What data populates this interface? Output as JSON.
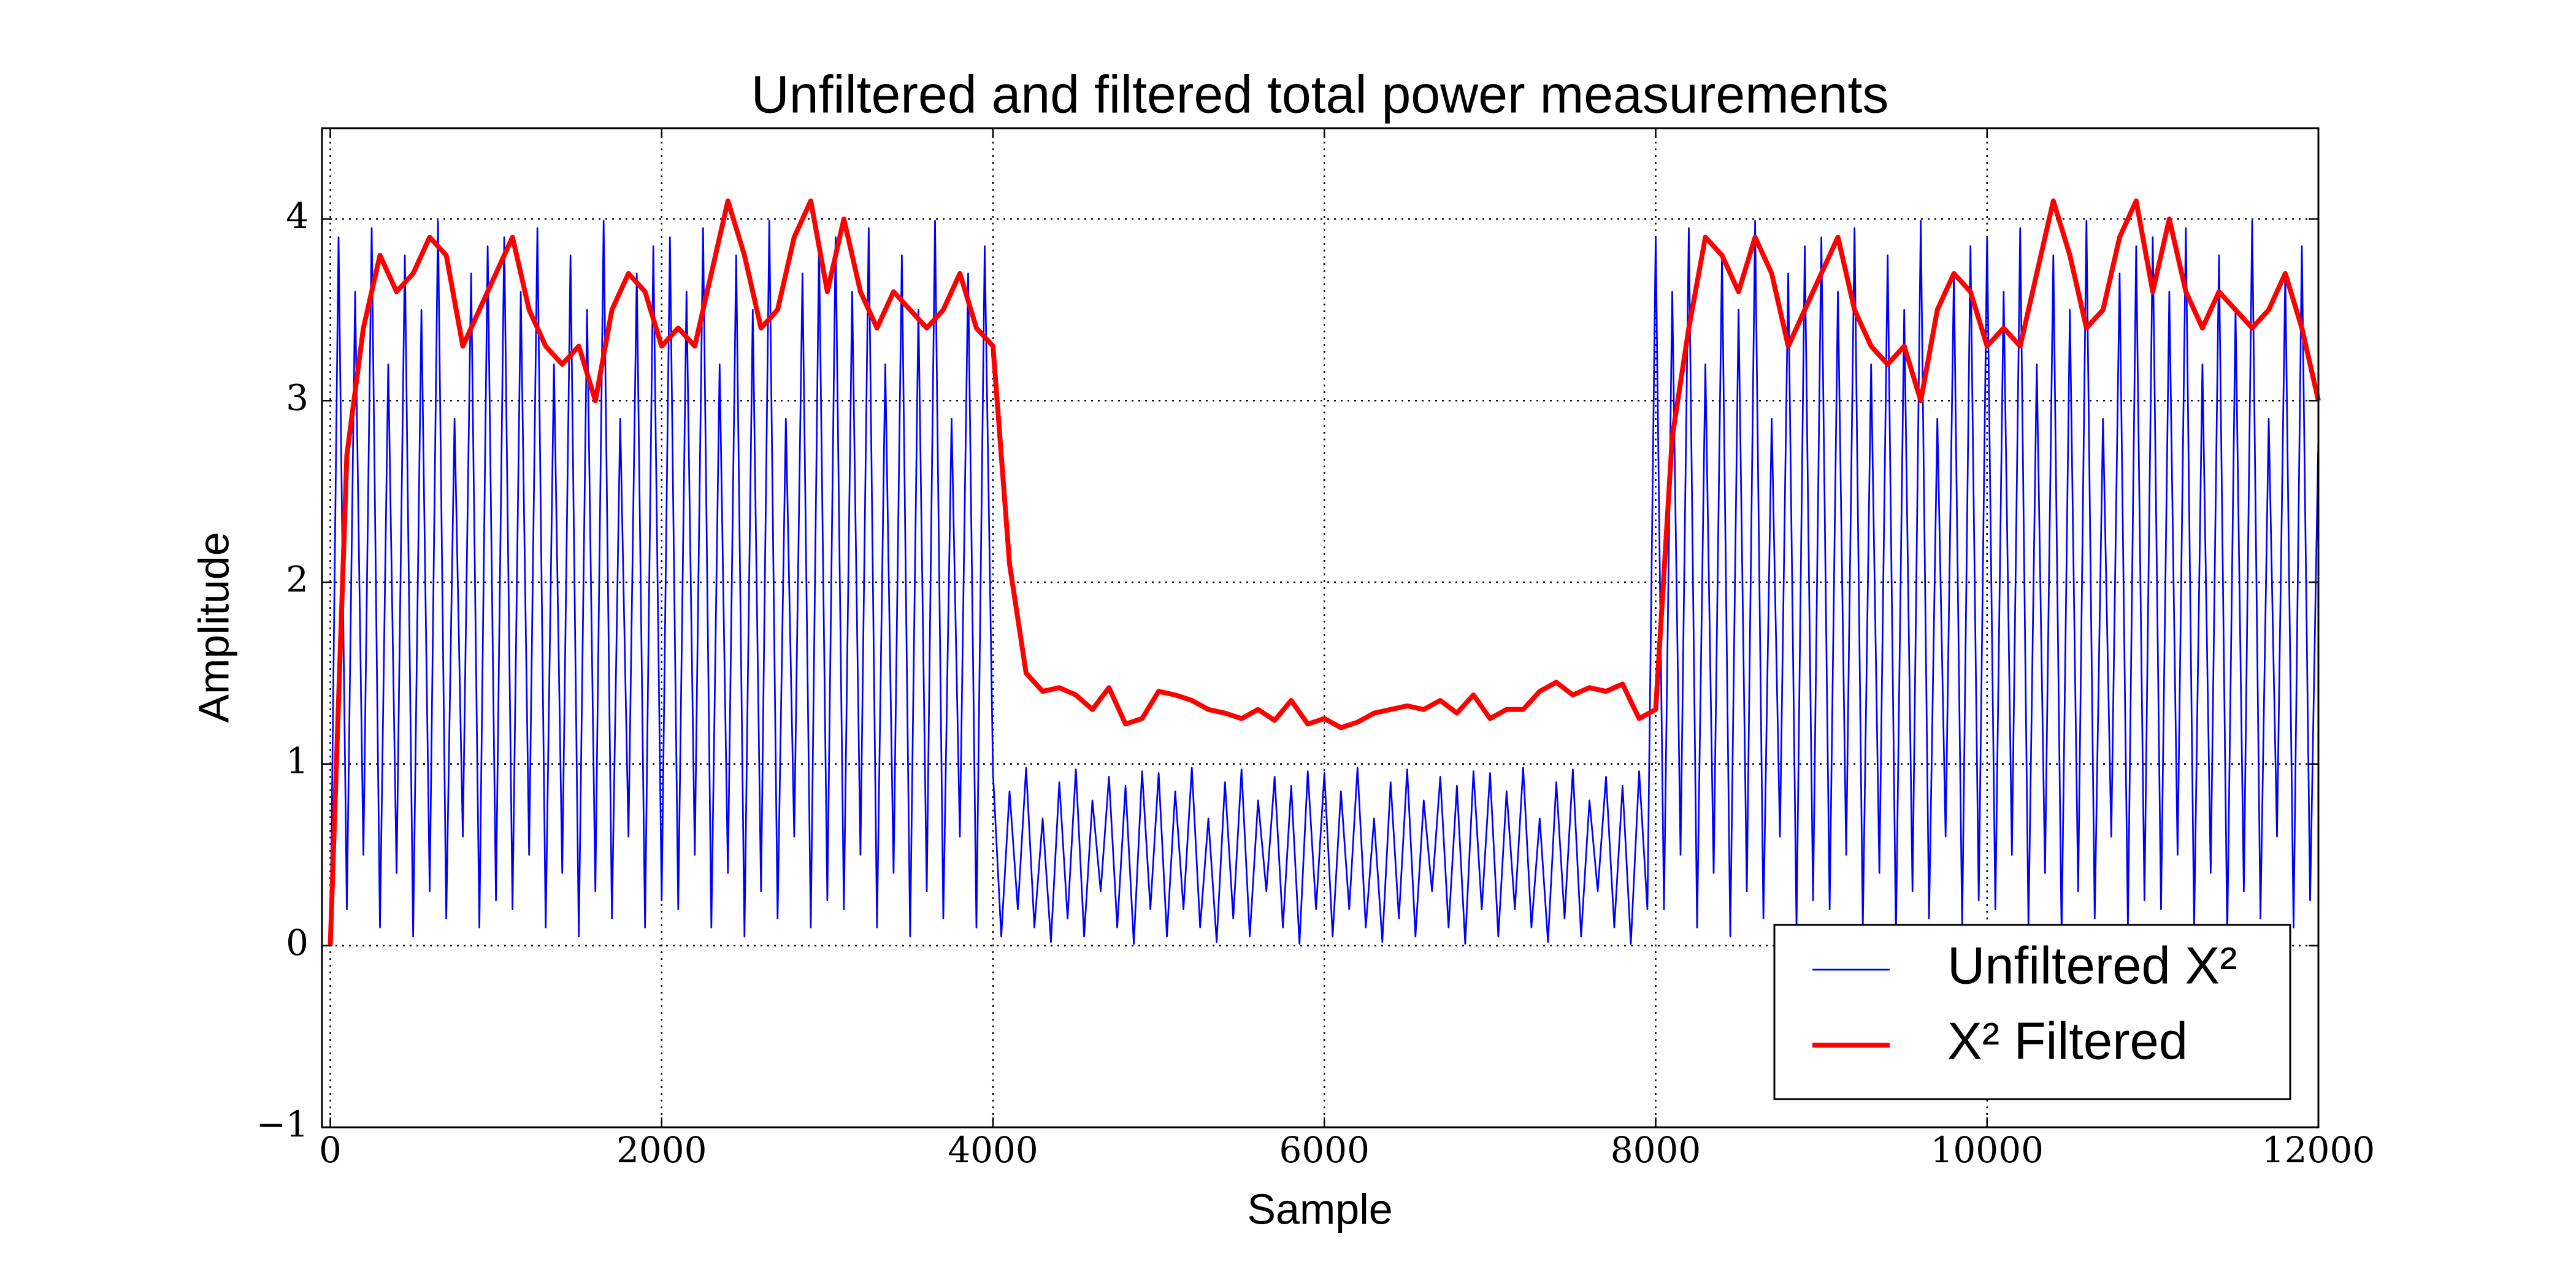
{
  "chart_data": {
    "type": "line",
    "title": "Unfiltered and filtered total power measurements",
    "x_label": "Sample",
    "y_label": "Amplitude",
    "xlim": [
      -50,
      12000
    ],
    "ylim": [
      -1,
      4.5
    ],
    "xticks": [
      0,
      2000,
      4000,
      6000,
      8000,
      10000,
      12000
    ],
    "yticks": [
      {
        "value": -1,
        "label": "−1"
      },
      0,
      1,
      2,
      3,
      4
    ],
    "grid": true,
    "legend": "lower right",
    "series": [
      {
        "name": "Unfiltered X²",
        "color": "#0000ff",
        "x": [
          0,
          50,
          100,
          150,
          200,
          250,
          300,
          350,
          400,
          450,
          500,
          550,
          600,
          650,
          700,
          750,
          800,
          850,
          900,
          950,
          1000,
          1050,
          1100,
          1150,
          1200,
          1250,
          1300,
          1350,
          1400,
          1450,
          1500,
          1550,
          1600,
          1650,
          1700,
          1750,
          1800,
          1850,
          1900,
          1950,
          2000,
          2050,
          2100,
          2150,
          2200,
          2250,
          2300,
          2350,
          2400,
          2450,
          2500,
          2550,
          2600,
          2650,
          2700,
          2750,
          2800,
          2850,
          2900,
          2950,
          3000,
          3050,
          3100,
          3150,
          3200,
          3250,
          3300,
          3350,
          3400,
          3450,
          3500,
          3550,
          3600,
          3650,
          3700,
          3750,
          3800,
          3850,
          3900,
          3950,
          4000,
          4050,
          4100,
          4150,
          4200,
          4250,
          4300,
          4350,
          4400,
          4450,
          4500,
          4550,
          4600,
          4650,
          4700,
          4750,
          4800,
          4850,
          4900,
          4950,
          5000,
          5050,
          5100,
          5150,
          5200,
          5250,
          5300,
          5350,
          5400,
          5450,
          5500,
          5550,
          5600,
          5650,
          5700,
          5750,
          5800,
          5850,
          5900,
          5950,
          6000,
          6050,
          6100,
          6150,
          6200,
          6250,
          6300,
          6350,
          6400,
          6450,
          6500,
          6550,
          6600,
          6650,
          6700,
          6750,
          6800,
          6850,
          6900,
          6950,
          7000,
          7050,
          7100,
          7150,
          7200,
          7250,
          7300,
          7350,
          7400,
          7450,
          7500,
          7550,
          7600,
          7650,
          7700,
          7750,
          7800,
          7850,
          7900,
          7950,
          8000,
          8050,
          8100,
          8150,
          8200,
          8250,
          8300,
          8350,
          8400,
          8450,
          8500,
          8550,
          8600,
          8650,
          8700,
          8750,
          8800,
          8850,
          8900,
          8950,
          9000,
          9050,
          9100,
          9150,
          9200,
          9250,
          9300,
          9350,
          9400,
          9450,
          9500,
          9550,
          9600,
          9650,
          9700,
          9750,
          9800,
          9850,
          9900,
          9950,
          10000,
          10050,
          10100,
          10150,
          10200,
          10250,
          10300,
          10350,
          10400,
          10450,
          10500,
          10550,
          10600,
          10650,
          10700,
          10750,
          10800,
          10850,
          10900,
          10950,
          11000,
          11050,
          11100,
          11150,
          11200,
          11250,
          11300,
          11350,
          11400,
          11450,
          11500,
          11550,
          11600,
          11650,
          11700,
          11750,
          11800,
          11850,
          11900,
          11950,
          12000
        ],
        "values": [
          0,
          3.9,
          0.2,
          3.6,
          0.5,
          3.95,
          0.1,
          3.2,
          0.4,
          3.8,
          0.05,
          3.5,
          0.3,
          3.99,
          0.15,
          2.9,
          0.6,
          3.7,
          0.1,
          3.85,
          0.25,
          3.9,
          0.2,
          3.6,
          0.5,
          3.95,
          0.1,
          3.2,
          0.4,
          3.8,
          0.05,
          3.5,
          0.3,
          3.99,
          0.15,
          2.9,
          0.6,
          3.7,
          0.1,
          3.85,
          0.25,
          3.9,
          0.2,
          3.6,
          0.5,
          3.95,
          0.1,
          3.2,
          0.4,
          3.8,
          0.05,
          3.5,
          0.3,
          3.99,
          0.15,
          2.9,
          0.6,
          3.7,
          0.1,
          3.85,
          0.25,
          3.9,
          0.2,
          3.6,
          0.5,
          3.95,
          0.1,
          3.2,
          0.4,
          3.8,
          0.05,
          3.5,
          0.3,
          3.99,
          0.15,
          2.9,
          0.6,
          3.7,
          0.1,
          3.85,
          0.95,
          0.05,
          0.85,
          0.2,
          0.98,
          0.1,
          0.7,
          0.02,
          0.9,
          0.15,
          0.97,
          0.05,
          0.8,
          0.3,
          0.93,
          0.1,
          0.88,
          0.01,
          0.96,
          0.2,
          0.95,
          0.05,
          0.85,
          0.2,
          0.98,
          0.1,
          0.7,
          0.02,
          0.9,
          0.15,
          0.97,
          0.05,
          0.8,
          0.3,
          0.93,
          0.1,
          0.88,
          0.01,
          0.96,
          0.2,
          0.95,
          0.05,
          0.85,
          0.2,
          0.98,
          0.1,
          0.7,
          0.02,
          0.9,
          0.15,
          0.97,
          0.05,
          0.8,
          0.3,
          0.93,
          0.1,
          0.88,
          0.01,
          0.96,
          0.2,
          0.95,
          0.05,
          0.85,
          0.2,
          0.98,
          0.1,
          0.7,
          0.02,
          0.9,
          0.15,
          0.97,
          0.05,
          0.8,
          0.3,
          0.93,
          0.1,
          0.88,
          0.01,
          0.96,
          0.2,
          3.9,
          0.2,
          3.6,
          0.5,
          3.95,
          0.1,
          3.2,
          0.4,
          3.8,
          0.05,
          3.5,
          0.3,
          3.99,
          0.15,
          2.9,
          0.6,
          3.7,
          0.1,
          3.85,
          0.25,
          3.9,
          0.2,
          3.6,
          0.5,
          3.95,
          0.1,
          3.2,
          0.4,
          3.8,
          0.05,
          3.5,
          0.3,
          3.99,
          0.15,
          2.9,
          0.6,
          3.7,
          0.1,
          3.85,
          0.25,
          3.9,
          0.2,
          3.6,
          0.5,
          3.95,
          0.1,
          3.2,
          0.4,
          3.8,
          0.05,
          3.5,
          0.3,
          3.99,
          0.15,
          2.9,
          0.6,
          3.7,
          0.1,
          3.85,
          0.25,
          3.9,
          0.2,
          3.6,
          0.5,
          3.95,
          0.1,
          3.2,
          0.4,
          3.8,
          0.05,
          3.5,
          0.3,
          3.99,
          0.15,
          2.9,
          0.6,
          3.7,
          0.1,
          3.85,
          0.25,
          2.8
        ]
      },
      {
        "name": "X² Filtered",
        "color": "#ff0000",
        "x": [
          0,
          100,
          200,
          300,
          400,
          500,
          600,
          700,
          800,
          900,
          1000,
          1100,
          1200,
          1300,
          1400,
          1500,
          1600,
          1700,
          1800,
          1900,
          2000,
          2100,
          2200,
          2300,
          2400,
          2500,
          2600,
          2700,
          2800,
          2900,
          3000,
          3100,
          3200,
          3300,
          3400,
          3500,
          3600,
          3700,
          3800,
          3900,
          4000,
          4100,
          4200,
          4300,
          4400,
          4500,
          4600,
          4700,
          4800,
          4900,
          5000,
          5100,
          5200,
          5300,
          5400,
          5500,
          5600,
          5700,
          5800,
          5900,
          6000,
          6100,
          6200,
          6300,
          6400,
          6500,
          6600,
          6700,
          6800,
          6900,
          7000,
          7100,
          7200,
          7300,
          7400,
          7500,
          7600,
          7700,
          7800,
          7900,
          8000,
          8100,
          8200,
          8300,
          8400,
          8500,
          8600,
          8700,
          8800,
          8900,
          9000,
          9100,
          9200,
          9300,
          9400,
          9500,
          9600,
          9700,
          9800,
          9900,
          10000,
          10100,
          10200,
          10300,
          10400,
          10500,
          10600,
          10700,
          10800,
          10900,
          11000,
          11100,
          11200,
          11300,
          11400,
          11500,
          11600,
          11700,
          11800,
          11900,
          12000
        ],
        "values": [
          0,
          2.7,
          3.4,
          3.8,
          3.6,
          3.7,
          3.9,
          3.8,
          3.3,
          3.5,
          3.7,
          3.9,
          3.5,
          3.3,
          3.2,
          3.3,
          3.0,
          3.5,
          3.7,
          3.6,
          3.3,
          3.4,
          3.3,
          3.7,
          4.1,
          3.8,
          3.4,
          3.5,
          3.9,
          4.1,
          3.6,
          4.0,
          3.6,
          3.4,
          3.6,
          3.5,
          3.4,
          3.5,
          3.7,
          3.4,
          3.3,
          2.1,
          1.5,
          1.4,
          1.42,
          1.38,
          1.3,
          1.42,
          1.22,
          1.25,
          1.4,
          1.38,
          1.35,
          1.3,
          1.28,
          1.25,
          1.3,
          1.24,
          1.35,
          1.22,
          1.25,
          1.2,
          1.23,
          1.28,
          1.3,
          1.32,
          1.3,
          1.35,
          1.28,
          1.38,
          1.25,
          1.3,
          1.3,
          1.4,
          1.45,
          1.38,
          1.42,
          1.4,
          1.44,
          1.25,
          1.3,
          2.8,
          3.4,
          3.9,
          3.8,
          3.6,
          3.9,
          3.7,
          3.3,
          3.5,
          3.7,
          3.9,
          3.5,
          3.3,
          3.2,
          3.3,
          3.0,
          3.5,
          3.7,
          3.6,
          3.3,
          3.4,
          3.3,
          3.7,
          4.1,
          3.8,
          3.4,
          3.5,
          3.9,
          4.1,
          3.6,
          4.0,
          3.6,
          3.4,
          3.6,
          3.5,
          3.4,
          3.5,
          3.7,
          3.4,
          3.0
        ]
      }
    ]
  }
}
